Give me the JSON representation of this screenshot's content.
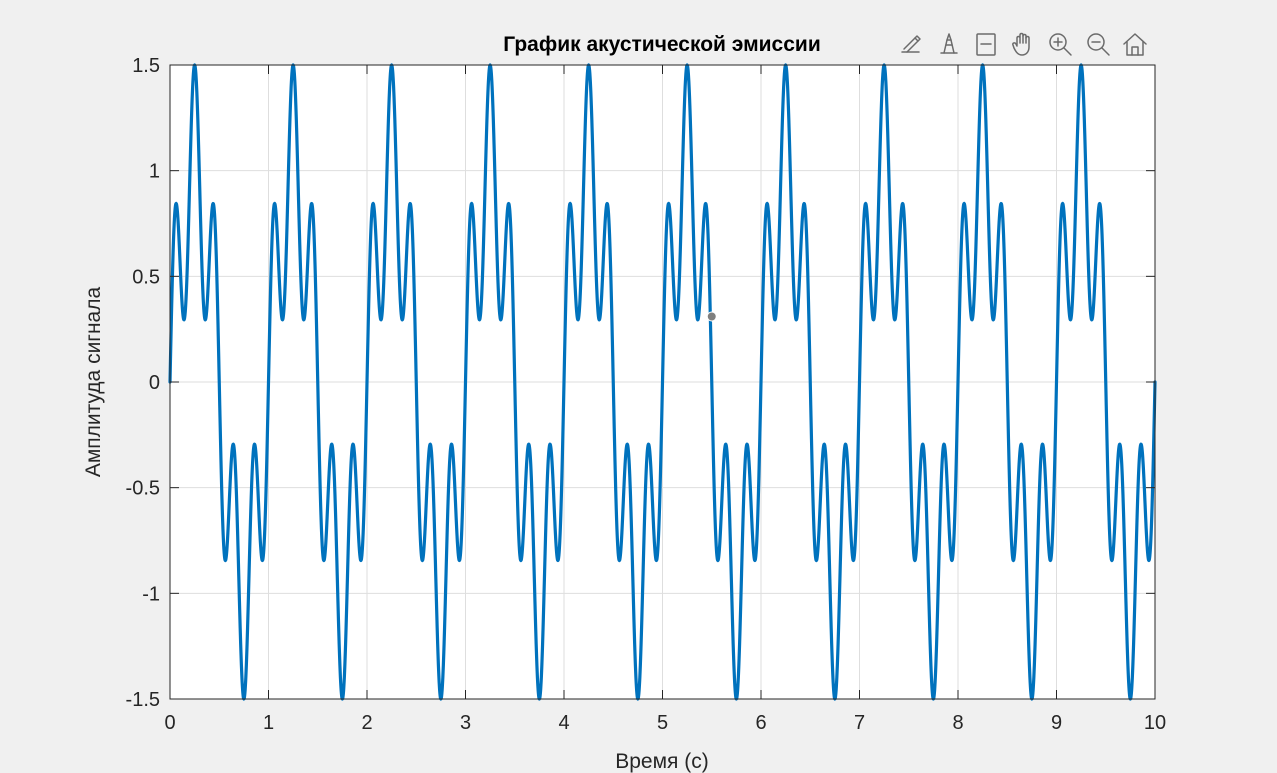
{
  "chart_data": {
    "type": "line",
    "title": "График акустической эмиссии",
    "xlabel": "Время (с)",
    "ylabel": "Амплитуда сигнала",
    "xlim": [
      0,
      10
    ],
    "ylim": [
      -1.5,
      1.5
    ],
    "x_ticks": [
      0,
      1,
      2,
      3,
      4,
      5,
      6,
      7,
      8,
      9,
      10
    ],
    "x_tick_labels": [
      "0",
      "1",
      "2",
      "3",
      "4",
      "5",
      "6",
      "7",
      "8",
      "9",
      "10"
    ],
    "y_ticks": [
      1.5,
      1,
      0.5,
      0,
      -0.5,
      -1,
      -1.5
    ],
    "y_tick_labels": [
      "1.5",
      "1",
      "0.5",
      "0",
      "-0.5",
      "-1",
      "-1.5"
    ],
    "grid": true,
    "series": [
      {
        "function": "sin(2*pi*1*t) + 0.5*sin(2*pi*5*t)",
        "x_range": [
          0,
          10
        ],
        "color": "#0072bd"
      }
    ],
    "marker_point": {
      "x": 5.5,
      "y": 0.31,
      "color": "#7f7f7f"
    }
  },
  "toolbar": {
    "icons": [
      "brush-icon",
      "data-tips-icon",
      "legend-icon",
      "pan-hand-icon",
      "zoom-in-icon",
      "zoom-out-icon",
      "home-icon"
    ]
  },
  "colors": {
    "figure_background": "#f0f0f0",
    "axes_background": "#ffffff",
    "grid": "#dedede",
    "axis": "#262626",
    "line": "#0072bd"
  }
}
